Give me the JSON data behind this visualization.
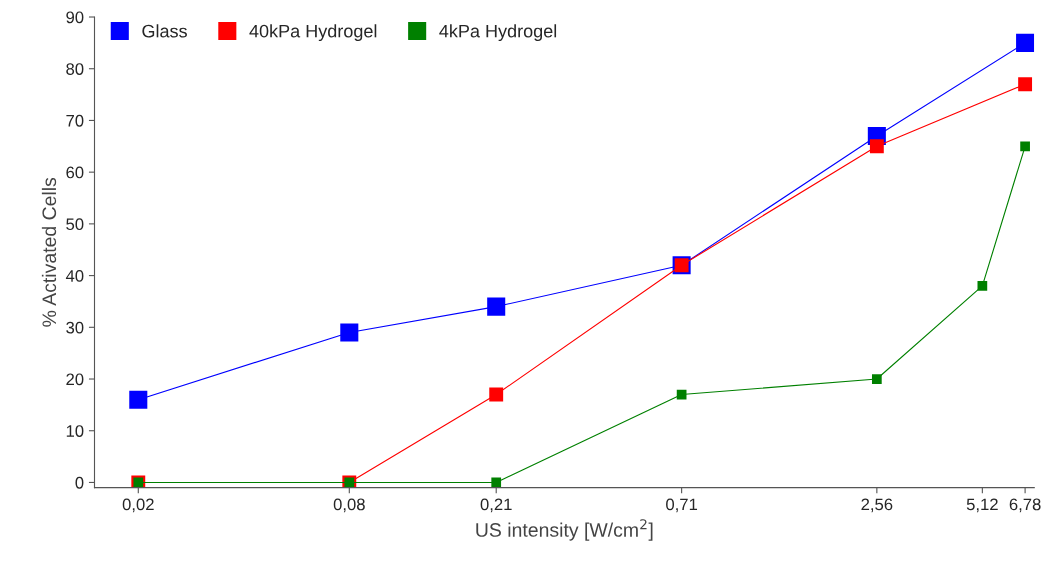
{
  "chart_data": {
    "type": "line",
    "xlabel": "US intensity [W/cm$^{2}$]",
    "ylabel": "% Activated Cells",
    "log": "x",
    "xlim": [
      0.015,
      7.2
    ],
    "xticks": [
      {
        "value": 0.02,
        "label": "0,02"
      },
      {
        "value": 0.08,
        "label": "0,08"
      },
      {
        "value": 0.21,
        "label": "0,21"
      },
      {
        "value": 0.71,
        "label": "0,71"
      },
      {
        "value": 2.56,
        "label": "2,56"
      },
      {
        "value": 5.12,
        "label": "5,12"
      },
      {
        "value": 6.78,
        "label": "6,78"
      }
    ],
    "ylim": [
      -1,
      90
    ],
    "yticks": [
      0,
      10,
      20,
      30,
      40,
      50,
      60,
      70,
      80,
      90
    ],
    "grid": false,
    "legend": "top left",
    "marker": "square",
    "line_style": "solid",
    "series": [
      {
        "name": "Glass",
        "color": "#0000ff",
        "x": [
          0.02,
          0.08,
          0.21,
          0.71,
          2.56,
          6.78
        ],
        "values": [
          16,
          29,
          34,
          42,
          67,
          85
        ]
      },
      {
        "name": "40kPa Hydrogel",
        "color": "#ff0000",
        "x": [
          0.02,
          0.08,
          0.21,
          0.71,
          2.56,
          6.78
        ],
        "values": [
          0,
          0,
          17,
          42,
          65,
          77
        ]
      },
      {
        "name": "4kPa Hydrogel",
        "color": "#008000",
        "x": [
          0.02,
          0.08,
          0.21,
          0.71,
          2.56,
          5.12,
          6.78
        ],
        "values": [
          0,
          0,
          0,
          17,
          20,
          38,
          65
        ]
      }
    ]
  }
}
